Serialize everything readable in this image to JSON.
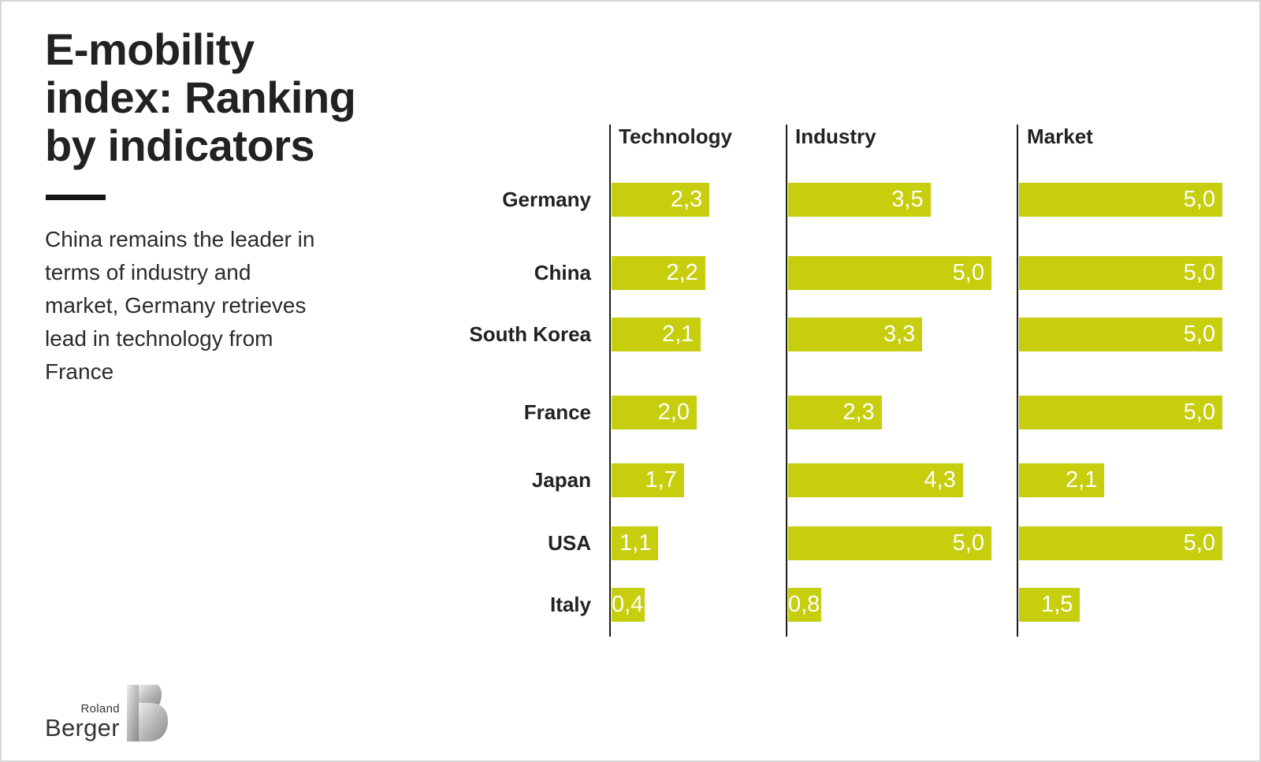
{
  "header": {
    "title": "E-mobility\nindex: Ranking\nby indicators",
    "subtitle": "China remains the leader in\nterms of industry and\nmarket, Germany retrieves\nlead in technology from\nFrance"
  },
  "chart_data": {
    "type": "bar",
    "orientation": "horizontal",
    "title": "E-mobility index: Ranking by indicators",
    "categories": [
      "Germany",
      "China",
      "South Korea",
      "France",
      "Japan",
      "USA",
      "Italy"
    ],
    "panels": [
      {
        "label": "Technology",
        "values": [
          2.3,
          2.2,
          2.1,
          2.0,
          1.7,
          1.1,
          0.4
        ],
        "display": [
          "2,3",
          "2,2",
          "2,1",
          "2,0",
          "1,7",
          "1,1",
          "0,4"
        ]
      },
      {
        "label": "Industry",
        "values": [
          3.5,
          5.0,
          3.3,
          2.3,
          4.3,
          5.0,
          0.8
        ],
        "display": [
          "3,5",
          "5,0",
          "3,3",
          "2,3",
          "4,3",
          "5,0",
          "0,8"
        ]
      },
      {
        "label": "Market",
        "values": [
          5.0,
          5.0,
          5.0,
          5.0,
          2.1,
          5.0,
          1.5
        ],
        "display": [
          "5,0",
          "5,0",
          "5,0",
          "5,0",
          "2,1",
          "5,0",
          "1,5"
        ]
      }
    ],
    "xlim": [
      0,
      5
    ],
    "grid": false,
    "legend": false,
    "bar_color": "#c6ce0d",
    "value_label_color": "#ffffff",
    "axis_color": "#1d1d1b"
  },
  "logo": {
    "top": "Roland",
    "bottom": "Berger"
  }
}
